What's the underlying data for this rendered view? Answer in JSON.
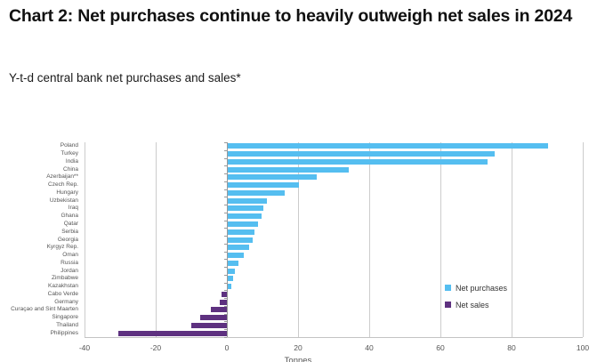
{
  "header": {
    "title": "Chart 2: Net purchases continue to heavily outweigh net sales in 2024",
    "subtitle": "Y-t-d central bank net purchases and sales*"
  },
  "chart_data": {
    "type": "bar",
    "orientation": "horizontal",
    "title": "Chart 2: Net purchases continue to heavily outweigh net sales in 2024",
    "subtitle": "Y-t-d central bank net purchases and sales*",
    "xlabel": "Tonnes",
    "ylabel": "",
    "xlim": [
      -40,
      100
    ],
    "xticks": [
      -40,
      -20,
      0,
      20,
      40,
      60,
      80,
      100
    ],
    "grid": true,
    "legend_position": "middle-right",
    "categories": [
      "Poland",
      "Turkey",
      "India",
      "China",
      "Azerbaijan**",
      "Czech Rep.",
      "Hungary",
      "Uzbekistan",
      "Iraq",
      "Ghana",
      "Qatar",
      "Serbia",
      "Georgia",
      "Kyrgyz Rep.",
      "Oman",
      "Russia",
      "Jordan",
      "Zimbabwe",
      "Kazakhstan",
      "Cabo Verde",
      "Germany",
      "Curaçao and Sint Maarten",
      "Singapore",
      "Thailand",
      "Philippines"
    ],
    "values": [
      90,
      75,
      73,
      34,
      25,
      20,
      16,
      11,
      10,
      9.5,
      8.5,
      7.5,
      7,
      6,
      4.5,
      3,
      2,
      1.5,
      1,
      -1.5,
      -2,
      -4.5,
      -7.5,
      -10,
      -30.5
    ],
    "series": [
      {
        "name": "Net purchases",
        "color": "#55BEF0"
      },
      {
        "name": "Net sales",
        "color": "#5E3180"
      }
    ],
    "colors": {
      "gridline": "#cccccc",
      "zero_axis": "#999999",
      "tick_text": "#555555"
    }
  }
}
